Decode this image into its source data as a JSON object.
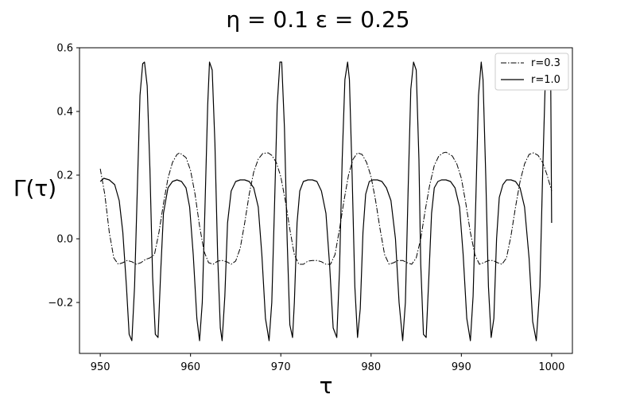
{
  "chart_data": {
    "type": "line",
    "title": "η = 0.1  ε = 0.25",
    "xlabel": "τ",
    "ylabel": "Γ(τ)",
    "xlim": [
      947.7,
      1002.3
    ],
    "ylim": [
      -0.36,
      0.6
    ],
    "xticks": [
      950,
      960,
      970,
      980,
      990,
      1000
    ],
    "xtick_labels": [
      "950",
      "960",
      "970",
      "980",
      "990",
      "1000"
    ],
    "yticks": [
      -0.2,
      0.0,
      0.2,
      0.4,
      0.6
    ],
    "ytick_labels": [
      "−0.2",
      "0.0",
      "0.2",
      "0.4",
      "0.6"
    ],
    "grid": false,
    "legend_position": "top-right",
    "series": [
      {
        "name": "r=0.3",
        "style": "dashdot",
        "color": "#000000",
        "x": [
          950.0,
          950.5,
          951.0,
          951.5,
          952.0,
          952.5,
          953.0,
          953.5,
          954.0,
          954.5,
          955.0,
          955.5,
          956.0,
          956.5,
          957.0,
          957.5,
          958.0,
          958.5,
          958.8,
          959.5,
          960.0,
          960.5,
          961.0,
          961.5,
          962.0,
          962.5,
          963.0,
          963.5,
          964.0,
          964.5,
          965.0,
          965.5,
          966.0,
          966.5,
          967.0,
          967.5,
          968.0,
          968.6,
          969.0,
          969.5,
          970.0,
          970.5,
          971.0,
          971.5,
          972.0,
          972.5,
          973.0,
          973.5,
          974.0,
          974.5,
          975.0,
          975.5,
          976.0,
          976.5,
          977.0,
          977.5,
          978.0,
          978.5,
          979.0,
          979.5,
          980.0,
          980.5,
          981.0,
          981.5,
          982.0,
          982.5,
          983.0,
          983.5,
          984.0,
          984.5,
          985.0,
          985.5,
          986.0,
          986.5,
          987.0,
          987.5,
          988.0,
          988.3,
          989.0,
          989.5,
          990.0,
          990.5,
          991.0,
          991.5,
          992.0,
          992.5,
          993.0,
          993.5,
          994.0,
          994.5,
          995.0,
          995.5,
          996.0,
          996.5,
          997.0,
          997.5,
          998.0,
          998.5,
          999.0,
          999.5,
          1000.0
        ],
        "y": [
          0.22,
          0.14,
          0.02,
          -0.06,
          -0.08,
          -0.075,
          -0.068,
          -0.072,
          -0.08,
          -0.075,
          -0.065,
          -0.06,
          -0.05,
          0.02,
          0.11,
          0.19,
          0.24,
          0.265,
          0.27,
          0.255,
          0.215,
          0.14,
          0.04,
          -0.04,
          -0.075,
          -0.08,
          -0.07,
          -0.068,
          -0.072,
          -0.08,
          -0.07,
          -0.03,
          0.05,
          0.14,
          0.21,
          0.25,
          0.268,
          0.27,
          0.262,
          0.24,
          0.195,
          0.12,
          0.03,
          -0.05,
          -0.08,
          -0.08,
          -0.07,
          -0.068,
          -0.068,
          -0.072,
          -0.08,
          -0.08,
          -0.05,
          0.03,
          0.12,
          0.2,
          0.25,
          0.27,
          0.265,
          0.24,
          0.195,
          0.12,
          0.03,
          -0.05,
          -0.08,
          -0.075,
          -0.068,
          -0.068,
          -0.075,
          -0.08,
          -0.06,
          0.0,
          0.09,
          0.17,
          0.23,
          0.26,
          0.27,
          0.272,
          0.26,
          0.235,
          0.19,
          0.11,
          0.02,
          -0.05,
          -0.08,
          -0.075,
          -0.068,
          -0.068,
          -0.075,
          -0.08,
          -0.06,
          0.01,
          0.1,
          0.18,
          0.235,
          0.265,
          0.27,
          0.262,
          0.24,
          0.2,
          0.15
        ]
      },
      {
        "name": "r=1.0",
        "style": "solid",
        "color": "#000000",
        "x": [
          950.0,
          950.4,
          951.0,
          951.6,
          952.1,
          952.5,
          952.9,
          953.2,
          953.5,
          953.8,
          954.1,
          954.4,
          954.7,
          954.9,
          955.2,
          955.5,
          955.8,
          956.1,
          956.4,
          956.7,
          957.0,
          957.5,
          958.0,
          958.5,
          959.0,
          959.5,
          959.9,
          960.3,
          960.7,
          961.0,
          961.3,
          961.6,
          961.9,
          962.1,
          962.4,
          962.7,
          963.0,
          963.3,
          963.5,
          963.8,
          964.1,
          964.5,
          965.0,
          965.5,
          966.0,
          966.5,
          967.0,
          967.5,
          967.9,
          968.3,
          968.7,
          969.0,
          969.3,
          969.6,
          969.9,
          970.1,
          970.4,
          970.7,
          971.0,
          971.3,
          971.5,
          971.8,
          972.1,
          972.5,
          973.0,
          973.5,
          974.0,
          974.5,
          975.0,
          975.4,
          975.8,
          976.2,
          976.5,
          976.8,
          977.1,
          977.4,
          977.6,
          977.9,
          978.2,
          978.5,
          978.8,
          979.1,
          979.4,
          979.8,
          980.2,
          980.7,
          981.2,
          981.7,
          982.2,
          982.7,
          983.1,
          983.5,
          983.8,
          984.1,
          984.4,
          984.7,
          985.0,
          985.3,
          985.5,
          985.8,
          986.1,
          986.4,
          986.7,
          987.0,
          987.4,
          987.8,
          988.3,
          988.8,
          989.3,
          989.8,
          990.2,
          990.6,
          991.0,
          991.3,
          991.6,
          991.9,
          992.2,
          992.4,
          992.7,
          993.0,
          993.3,
          993.6,
          993.9,
          994.2,
          994.6,
          995.0,
          995.5,
          996.0,
          996.5,
          997.0,
          997.5,
          997.9,
          998.3,
          998.7,
          999.0,
          999.3,
          999.6,
          999.9,
          1000.0
        ],
        "y": [
          0.18,
          0.19,
          0.185,
          0.17,
          0.12,
          0.02,
          -0.15,
          -0.3,
          -0.32,
          -0.15,
          0.15,
          0.45,
          0.55,
          0.555,
          0.48,
          0.22,
          -0.12,
          -0.3,
          -0.31,
          -0.1,
          0.08,
          0.16,
          0.18,
          0.185,
          0.18,
          0.16,
          0.1,
          -0.05,
          -0.25,
          -0.32,
          -0.2,
          0.1,
          0.42,
          0.555,
          0.53,
          0.3,
          -0.05,
          -0.28,
          -0.32,
          -0.18,
          0.05,
          0.15,
          0.18,
          0.185,
          0.185,
          0.18,
          0.16,
          0.1,
          -0.05,
          -0.25,
          -0.32,
          -0.2,
          0.1,
          0.42,
          0.555,
          0.555,
          0.35,
          0.0,
          -0.27,
          -0.31,
          -0.2,
          0.05,
          0.15,
          0.18,
          0.185,
          0.185,
          0.18,
          0.15,
          0.08,
          -0.08,
          -0.28,
          -0.31,
          -0.1,
          0.25,
          0.5,
          0.555,
          0.5,
          0.2,
          -0.15,
          -0.31,
          -0.22,
          0.02,
          0.14,
          0.18,
          0.185,
          0.185,
          0.18,
          0.16,
          0.12,
          0.0,
          -0.2,
          -0.32,
          -0.2,
          0.15,
          0.47,
          0.555,
          0.53,
          0.25,
          -0.08,
          -0.3,
          -0.31,
          -0.12,
          0.08,
          0.16,
          0.18,
          0.185,
          0.185,
          0.18,
          0.16,
          0.1,
          -0.05,
          -0.25,
          -0.32,
          -0.18,
          0.12,
          0.45,
          0.555,
          0.5,
          0.2,
          -0.15,
          -0.31,
          -0.25,
          0.0,
          0.13,
          0.17,
          0.185,
          0.185,
          0.18,
          0.16,
          0.1,
          -0.06,
          -0.26,
          -0.32,
          -0.15,
          0.2,
          0.5,
          0.555,
          0.49,
          0.05
        ]
      }
    ]
  }
}
